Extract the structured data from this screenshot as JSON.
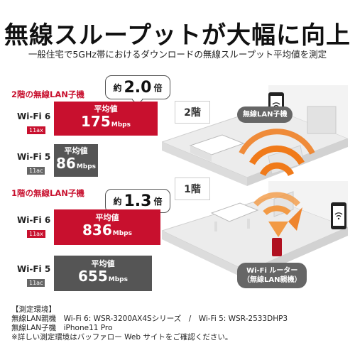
{
  "header": {
    "title": "無線スループットが大幅に向上",
    "subtitle": "一般住宅で5GHz帯におけるダウンロードの無線スループット平均値を測定"
  },
  "second_floor": {
    "label": "2階の無線LAN子機",
    "ratio_prefix": "約",
    "ratio_value": "2.0",
    "ratio_suffix": "倍",
    "wifi6": {
      "name": "Wi-Fi 6",
      "std": "11ax",
      "caption": "平均値",
      "value": "175",
      "unit": "Mbps"
    },
    "wifi5": {
      "name": "Wi-Fi 5",
      "std": "11ac",
      "caption": "平均値",
      "value": "86",
      "unit": "Mbps"
    }
  },
  "first_floor": {
    "label": "1階の無線LAN子機",
    "ratio_prefix": "約",
    "ratio_value": "1.3",
    "ratio_suffix": "倍",
    "wifi6": {
      "name": "Wi-Fi 6",
      "std": "11ax",
      "caption": "平均値",
      "value": "836",
      "unit": "Mbps"
    },
    "wifi5": {
      "name": "Wi-Fi 5",
      "std": "11ac",
      "caption": "平均値",
      "value": "655",
      "unit": "Mbps"
    }
  },
  "scene": {
    "floor2_badge": "2階",
    "floor1_badge": "1階",
    "client_tag": "無線LAN子機",
    "router_tag_line1": "Wi-Fi ルーター",
    "router_tag_line2": "（無線LAN親機）"
  },
  "environment": {
    "heading": "【測定環境】",
    "line1": "無線LAN親機　Wi-Fi 6: WSR-3200AX4Sシリーズ　/　Wi-Fi 5: WSR-2533DHP3",
    "line2": "無線LAN子機　iPhone11 Pro",
    "line3": "※詳しい測定環境はバッファロー Web サイトをご確認ください。"
  },
  "colors": {
    "accent_red": "#c8102e",
    "bar_gray": "#555555",
    "wave_orange": "#f07a1a"
  }
}
